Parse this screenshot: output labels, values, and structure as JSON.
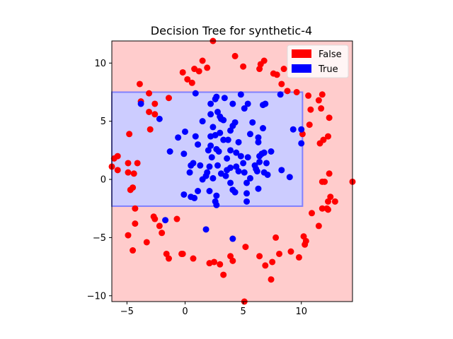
{
  "chart_data": {
    "type": "scatter",
    "title": "Decision Tree for synthetic-4",
    "xlabel": "",
    "ylabel": "",
    "xlim": [
      -6.3,
      14.4
    ],
    "ylim": [
      -10.5,
      11.9
    ],
    "xticks": [
      -5,
      0,
      5,
      10
    ],
    "yticks": [
      -10,
      -5,
      0,
      5,
      10
    ],
    "xtick_labels": [
      "−5",
      "0",
      "5",
      "10"
    ],
    "ytick_labels": [
      "−10",
      "−5",
      "0",
      "5",
      "10"
    ],
    "grid": false,
    "legend_position": "top-right",
    "legend": [
      {
        "label": "False",
        "color": "#ff0000"
      },
      {
        "label": "True",
        "color": "#0000ff"
      }
    ],
    "regions": [
      {
        "class": "False",
        "color": "#ffcccc"
      },
      {
        "class": "True",
        "color": "#ccccff",
        "x0": -6.3,
        "x1": 10.1,
        "y0": -2.3,
        "y1": 7.5
      }
    ],
    "series": [
      {
        "name": "False",
        "color": "#ff0000",
        "points": [
          [
            2.4,
            11.9
          ],
          [
            4.3,
            10.6
          ],
          [
            1.5,
            10.2
          ],
          [
            6.8,
            10.2
          ],
          [
            6.5,
            9.9
          ],
          [
            -0.2,
            9.2
          ],
          [
            0.8,
            9.5
          ],
          [
            1.9,
            9.6
          ],
          [
            5.0,
            9.7
          ],
          [
            6.4,
            9.5
          ],
          [
            7.6,
            9.1
          ],
          [
            8.5,
            9.5
          ],
          [
            0.2,
            8.6
          ],
          [
            0.6,
            8.3
          ],
          [
            1.2,
            9.3
          ],
          [
            -3.9,
            8.2
          ],
          [
            8.3,
            8.2
          ],
          [
            7.9,
            9.0
          ],
          [
            8.8,
            7.6
          ],
          [
            9.6,
            7.5
          ],
          [
            10.6,
            7.2
          ],
          [
            11.8,
            7.3
          ],
          [
            11.5,
            6.8
          ],
          [
            10.8,
            6.0
          ],
          [
            11.7,
            6.1
          ],
          [
            12.4,
            5.3
          ],
          [
            10.7,
            4.7
          ],
          [
            10.1,
            3.9
          ],
          [
            11.6,
            3.1
          ],
          [
            12.3,
            3.7
          ],
          [
            11.9,
            3.4
          ],
          [
            12.4,
            0.5
          ],
          [
            11.8,
            -0.2
          ],
          [
            12.0,
            -0.2
          ],
          [
            14.4,
            -0.2
          ],
          [
            12.5,
            -1.5
          ],
          [
            12.3,
            -1.9
          ],
          [
            12.9,
            -1.9
          ],
          [
            11.8,
            -2.5
          ],
          [
            12.3,
            -2.6
          ],
          [
            12.2,
            -2.5
          ],
          [
            10.9,
            -2.9
          ],
          [
            11.5,
            -4.0
          ],
          [
            10.2,
            -4.9
          ],
          [
            10.4,
            -5.3
          ],
          [
            10.3,
            -5.6
          ],
          [
            9.1,
            -6.2
          ],
          [
            9.8,
            -6.7
          ],
          [
            7.8,
            -5.0
          ],
          [
            8.1,
            -6.4
          ],
          [
            6.4,
            -6.6
          ],
          [
            7.5,
            -7.1
          ],
          [
            6.9,
            -7.4
          ],
          [
            7.4,
            -8.6
          ],
          [
            5.2,
            -5.8
          ],
          [
            3.9,
            -6.6
          ],
          [
            4.1,
            -7.0
          ],
          [
            3.0,
            -7.3
          ],
          [
            2.5,
            -7.1
          ],
          [
            2.1,
            -7.2
          ],
          [
            3.3,
            -8.2
          ],
          [
            5.1,
            -10.5
          ],
          [
            -0.3,
            -6.4
          ],
          [
            -0.2,
            -6.4
          ],
          [
            0.7,
            -6.8
          ],
          [
            -1.6,
            -6.4
          ],
          [
            -1.4,
            -6.8
          ],
          [
            -2.0,
            -4.6
          ],
          [
            -2.2,
            -4.0
          ],
          [
            -2.6,
            -3.4
          ],
          [
            -2.7,
            -3.2
          ],
          [
            -3.3,
            -5.4
          ],
          [
            -4.5,
            -6.1
          ],
          [
            -4.9,
            -4.8
          ],
          [
            -4.3,
            -3.8
          ],
          [
            -4.3,
            -2.5
          ],
          [
            -0.7,
            -3.4
          ],
          [
            -4.4,
            0.5
          ],
          [
            -4.7,
            -0.9
          ],
          [
            -4.5,
            -0.7
          ],
          [
            -4.9,
            0.6
          ],
          [
            -5.8,
            0.8
          ],
          [
            -6.3,
            1.1
          ],
          [
            -5.8,
            2.0
          ],
          [
            -6.1,
            1.8
          ],
          [
            -4.9,
            1.4
          ],
          [
            -4.1,
            1.4
          ],
          [
            -4.8,
            3.9
          ],
          [
            -3.0,
            4.3
          ],
          [
            -3.1,
            5.8
          ],
          [
            -2.6,
            5.6
          ],
          [
            -2.6,
            6.5
          ],
          [
            -3.1,
            7.4
          ],
          [
            -1.4,
            7.0
          ],
          [
            -3.8,
            6.7
          ]
        ]
      },
      {
        "name": "True",
        "color": "#0000ff",
        "points": [
          [
            0.9,
            7.4
          ],
          [
            2.6,
            6.9
          ],
          [
            2.7,
            7.1
          ],
          [
            3.4,
            7.0
          ],
          [
            4.8,
            7.3
          ],
          [
            6.7,
            6.4
          ],
          [
            6.9,
            6.5
          ],
          [
            8.2,
            7.3
          ],
          [
            -3.8,
            6.5
          ],
          [
            2.2,
            6.5
          ],
          [
            4.1,
            6.5
          ],
          [
            5.4,
            6.5
          ],
          [
            5.1,
            6.1
          ],
          [
            2.2,
            5.6
          ],
          [
            2.8,
            5.8
          ],
          [
            3.0,
            5.4
          ],
          [
            3.1,
            5.2
          ],
          [
            3.3,
            5.1
          ],
          [
            -2.2,
            5.2
          ],
          [
            1.5,
            5.0
          ],
          [
            4.3,
            4.9
          ],
          [
            4.1,
            4.6
          ],
          [
            5.8,
            4.9
          ],
          [
            6.7,
            4.4
          ],
          [
            3.9,
            4.2
          ],
          [
            3.0,
            4.0
          ],
          [
            2.4,
            4.5
          ],
          [
            2.6,
            3.8
          ],
          [
            2.2,
            3.7
          ],
          [
            0.0,
            4.1
          ],
          [
            0.9,
            3.7
          ],
          [
            -0.6,
            3.6
          ],
          [
            5.6,
            3.9
          ],
          [
            6.3,
            3.6
          ],
          [
            3.3,
            3.4
          ],
          [
            3.7,
            3.4
          ],
          [
            6.3,
            3.2
          ],
          [
            4.6,
            3.2
          ],
          [
            9.3,
            4.3
          ],
          [
            10.0,
            4.3
          ],
          [
            10.0,
            3.1
          ],
          [
            1.1,
            3.0
          ],
          [
            2.2,
            2.9
          ],
          [
            2.0,
            2.5
          ],
          [
            2.7,
            2.6
          ],
          [
            2.9,
            2.4
          ],
          [
            3.9,
            2.5
          ],
          [
            4.4,
            2.3
          ],
          [
            5.4,
            1.9
          ],
          [
            4.8,
            2.0
          ],
          [
            6.6,
            2.2
          ],
          [
            6.8,
            2.3
          ],
          [
            6.4,
            2.0
          ],
          [
            7.4,
            2.4
          ],
          [
            -1.3,
            2.4
          ],
          [
            -0.1,
            2.2
          ],
          [
            2.3,
            1.9
          ],
          [
            3.6,
            1.8
          ],
          [
            0.7,
            1.4
          ],
          [
            0.5,
            1.2
          ],
          [
            1.3,
            1.2
          ],
          [
            2.1,
            1.1
          ],
          [
            2.8,
            1.2
          ],
          [
            3.9,
            1.0
          ],
          [
            4.4,
            1.1
          ],
          [
            5.0,
            1.4
          ],
          [
            6.0,
            1.2
          ],
          [
            6.4,
            1.5
          ],
          [
            7.0,
            1.4
          ],
          [
            6.1,
            0.9
          ],
          [
            1.9,
            0.6
          ],
          [
            3.1,
            0.5
          ],
          [
            3.6,
            0.8
          ],
          [
            4.6,
            0.7
          ],
          [
            5.1,
            0.6
          ],
          [
            6.2,
            0.7
          ],
          [
            6.8,
            0.6
          ],
          [
            8.3,
            0.8
          ],
          [
            9.0,
            0.2
          ],
          [
            0.4,
            0.6
          ],
          [
            1.8,
            0.3
          ],
          [
            2.4,
            0.1
          ],
          [
            1.5,
            0.0
          ],
          [
            3.5,
            0.3
          ],
          [
            5.6,
            0.1
          ],
          [
            7.1,
            0.4
          ],
          [
            3.9,
            -0.3
          ],
          [
            5.3,
            -0.3
          ],
          [
            6.3,
            -0.8
          ],
          [
            -0.1,
            -1.3
          ],
          [
            1.1,
            -1.0
          ],
          [
            2.1,
            -1.0
          ],
          [
            0.5,
            -1.5
          ],
          [
            0.8,
            -1.6
          ],
          [
            2.7,
            -1.4
          ],
          [
            4.1,
            -0.9
          ],
          [
            4.3,
            -1.1
          ],
          [
            2.6,
            -1.9
          ],
          [
            2.7,
            -2.2
          ],
          [
            5.3,
            -1.2
          ],
          [
            5.3,
            -1.9
          ],
          [
            -1.7,
            -3.5
          ],
          [
            1.8,
            -4.3
          ],
          [
            4.1,
            -5.1
          ]
        ]
      }
    ]
  }
}
